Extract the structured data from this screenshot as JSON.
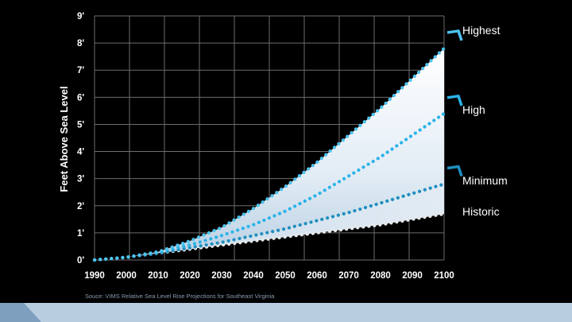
{
  "chart_data": {
    "type": "line",
    "title": "",
    "xlabel": "",
    "ylabel": "Feet Above Sea Level",
    "x": [
      1990,
      2000,
      2010,
      2020,
      2030,
      2040,
      2050,
      2060,
      2070,
      2080,
      2090,
      2100
    ],
    "x_tick_labels": [
      "1990",
      "2000",
      "2010",
      "2020",
      "2030",
      "2040",
      "2050",
      "2060",
      "2070",
      "2080",
      "2090",
      "2100"
    ],
    "y_tick_labels": [
      "0'",
      "1'",
      "2'",
      "3'",
      "4'",
      "5'",
      "6'",
      "7'",
      "8'",
      "9'"
    ],
    "xlim": [
      1990,
      2100
    ],
    "ylim": [
      0,
      9
    ],
    "grid": true,
    "series": [
      {
        "name": "Highest",
        "color": "#4cc3ee",
        "values": [
          0,
          0.1,
          0.3,
          0.7,
          1.2,
          1.9,
          2.7,
          3.6,
          4.6,
          5.6,
          6.7,
          7.8
        ]
      },
      {
        "name": "High",
        "color": "#2bb3e8",
        "values": [
          0,
          0.1,
          0.3,
          0.55,
          0.9,
          1.3,
          1.8,
          2.4,
          3.1,
          3.8,
          4.6,
          5.4
        ]
      },
      {
        "name": "Minimum",
        "color": "#1f8fbe",
        "values": [
          0,
          0.1,
          0.25,
          0.45,
          0.65,
          0.9,
          1.15,
          1.45,
          1.75,
          2.1,
          2.45,
          2.8
        ]
      },
      {
        "name": "Historic",
        "color": "#e6e8ea",
        "values": [
          0,
          0.1,
          0.25,
          0.4,
          0.55,
          0.7,
          0.85,
          1.0,
          1.15,
          1.3,
          1.5,
          1.7
        ]
      }
    ],
    "source": "Souce: VIMS Relative Sea Level Rise Projections for Southeast Virginia"
  }
}
